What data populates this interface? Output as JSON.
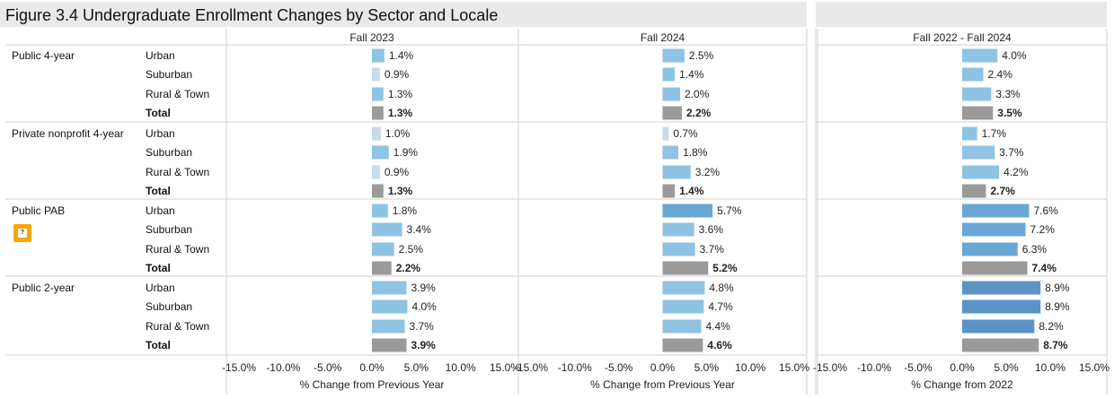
{
  "title": "Figure 3.4 Undergraduate Enrollment Changes by Sector and Locale",
  "help_icon": "question-icon",
  "colors": {
    "light_blue": "#8ec3e3",
    "mid_blue": "#6aa7d4",
    "dark_blue": "#5b93c6",
    "pale": "#c7dbe9",
    "total_gray": "#9a9a9a"
  },
  "chart_data": {
    "type": "bar",
    "orientation": "horizontal",
    "panels": [
      {
        "header": "Fall 2023",
        "xlabel": "% Change from Previous Year",
        "xlim": [
          -15,
          15
        ],
        "ticks": [
          "-15.0%",
          "-10.0%",
          "-5.0%",
          "0.0%",
          "5.0%",
          "10.0%",
          "15.0%"
        ]
      },
      {
        "header": "Fall 2024",
        "xlabel": "% Change from Previous Year",
        "xlim": [
          -15,
          15
        ],
        "ticks": [
          "-15.0%",
          "-10.0%",
          "-5.0%",
          "0.0%",
          "5.0%",
          "10.0%",
          "15.0%"
        ]
      },
      {
        "header": "Fall 2022 - Fall 2024",
        "xlabel": "% Change from 2022",
        "xlim": [
          -15,
          15
        ],
        "ticks": [
          "-15.0%",
          "-10.0%",
          "-5.0%",
          "0.0%",
          "5.0%",
          "10.0%",
          "15.0%"
        ]
      }
    ],
    "groups": [
      {
        "sector": "Public 4-year",
        "rows": [
          {
            "locale": "Urban",
            "values": [
              1.4,
              2.5,
              4.0
            ]
          },
          {
            "locale": "Suburban",
            "values": [
              0.9,
              1.4,
              2.4
            ]
          },
          {
            "locale": "Rural & Town",
            "values": [
              1.3,
              2.0,
              3.3
            ]
          },
          {
            "locale": "Total",
            "values": [
              1.3,
              2.2,
              3.5
            ],
            "total": true
          }
        ]
      },
      {
        "sector": "Private nonprofit 4-year",
        "rows": [
          {
            "locale": "Urban",
            "values": [
              1.0,
              0.7,
              1.7
            ]
          },
          {
            "locale": "Suburban",
            "values": [
              1.9,
              1.8,
              3.7
            ]
          },
          {
            "locale": "Rural & Town",
            "values": [
              0.9,
              3.2,
              4.2
            ]
          },
          {
            "locale": "Total",
            "values": [
              1.3,
              1.4,
              2.7
            ],
            "total": true
          }
        ]
      },
      {
        "sector": "Public PAB",
        "rows": [
          {
            "locale": "Urban",
            "values": [
              1.8,
              5.7,
              7.6
            ]
          },
          {
            "locale": "Suburban",
            "values": [
              3.4,
              3.6,
              7.2
            ]
          },
          {
            "locale": "Rural & Town",
            "values": [
              2.5,
              3.7,
              6.3
            ]
          },
          {
            "locale": "Total",
            "values": [
              2.2,
              5.2,
              7.4
            ],
            "total": true
          }
        ]
      },
      {
        "sector": "Public 2-year",
        "rows": [
          {
            "locale": "Urban",
            "values": [
              3.9,
              4.8,
              8.9
            ]
          },
          {
            "locale": "Suburban",
            "values": [
              4.0,
              4.7,
              8.9
            ]
          },
          {
            "locale": "Rural & Town",
            "values": [
              3.7,
              4.4,
              8.2
            ]
          },
          {
            "locale": "Total",
            "values": [
              3.9,
              4.6,
              8.7
            ],
            "total": true
          }
        ]
      }
    ]
  }
}
